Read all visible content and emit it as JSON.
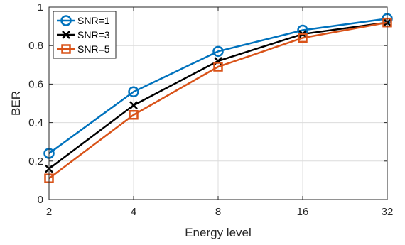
{
  "chart_data": {
    "type": "line",
    "title": "",
    "xlabel": "Energy level",
    "ylabel": "BER",
    "x_scale": "log2",
    "categories": [
      "2",
      "4",
      "8",
      "16",
      "32"
    ],
    "x": [
      2,
      4,
      8,
      16,
      32
    ],
    "ylim": [
      0,
      1
    ],
    "yticks": [
      "0",
      "0.2",
      "0.4",
      "0.6",
      "0.8",
      "1"
    ],
    "ytick_values": [
      0,
      0.2,
      0.4,
      0.6,
      0.8,
      1
    ],
    "grid": true,
    "legend_position": "top-left",
    "series": [
      {
        "name": "SNR=1",
        "values": [
          0.24,
          0.56,
          0.77,
          0.88,
          0.94
        ],
        "color": "#0072BD",
        "marker": "circle"
      },
      {
        "name": "SNR=3",
        "values": [
          0.16,
          0.49,
          0.72,
          0.86,
          0.92
        ],
        "color": "#000000",
        "marker": "x"
      },
      {
        "name": "SNR=5",
        "values": [
          0.11,
          0.44,
          0.69,
          0.84,
          0.92
        ],
        "color": "#D95319",
        "marker": "square"
      }
    ]
  }
}
